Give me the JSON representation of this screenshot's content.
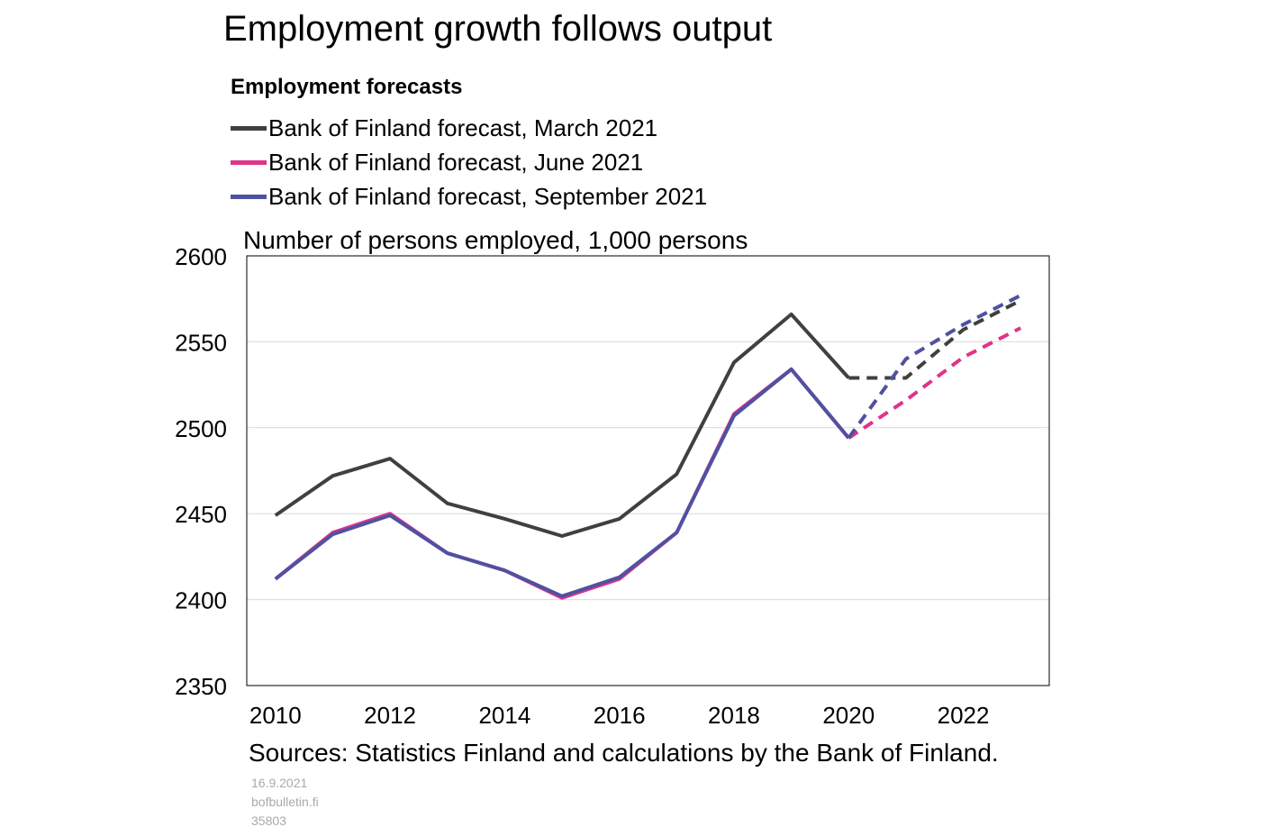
{
  "title": "Employment growth follows output",
  "legend_heading": "Employment forecasts",
  "unit_label": "Number of persons employed, 1,000 persons",
  "sources": "Sources: Statistics Finland and calculations by the Bank of Finland.",
  "footer": {
    "date": "16.9.2021",
    "site": "bofbulletin.fi",
    "id": "35803"
  },
  "chart_data": {
    "type": "line",
    "title": "",
    "xlabel": "",
    "ylabel": "Number of persons employed, 1,000 persons",
    "xlim": [
      2009.5,
      2023.5
    ],
    "ylim": [
      2350,
      2600
    ],
    "yticks": [
      2350,
      2400,
      2450,
      2500,
      2550,
      2600
    ],
    "xticks": [
      2010,
      2012,
      2014,
      2016,
      2018,
      2020,
      2022
    ],
    "grid": "horizontal",
    "legend_position": "top",
    "series": [
      {
        "name": "Bank of Finland forecast, March 2021",
        "color": "#404040",
        "x": [
          2010,
          2011,
          2012,
          2013,
          2014,
          2015,
          2016,
          2017,
          2018,
          2019,
          2020,
          2021,
          2022,
          2023
        ],
        "values": [
          2449,
          2472,
          2482,
          2456,
          2447,
          2437,
          2447,
          2473,
          2538,
          2566,
          2529,
          2529,
          2557,
          2574
        ],
        "forecast_from": 2020
      },
      {
        "name": "Bank of Finland forecast, June 2021",
        "color": "#e0338a",
        "x": [
          2010,
          2011,
          2012,
          2013,
          2014,
          2015,
          2016,
          2017,
          2018,
          2019,
          2020,
          2021,
          2022,
          2023
        ],
        "values": [
          2412,
          2439,
          2450,
          2427,
          2417,
          2401,
          2412,
          2439,
          2508,
          2534,
          2494,
          2516,
          2541,
          2558
        ],
        "forecast_from": 2020
      },
      {
        "name": "Bank of Finland forecast, September 2021",
        "color": "#4f51a1",
        "x": [
          2010,
          2011,
          2012,
          2013,
          2014,
          2015,
          2016,
          2017,
          2018,
          2019,
          2020,
          2021,
          2022,
          2023
        ],
        "values": [
          2412,
          2438,
          2449,
          2427,
          2417,
          2402,
          2413,
          2439,
          2507,
          2534,
          2494,
          2540,
          2560,
          2577
        ],
        "forecast_from": 2020
      }
    ]
  }
}
